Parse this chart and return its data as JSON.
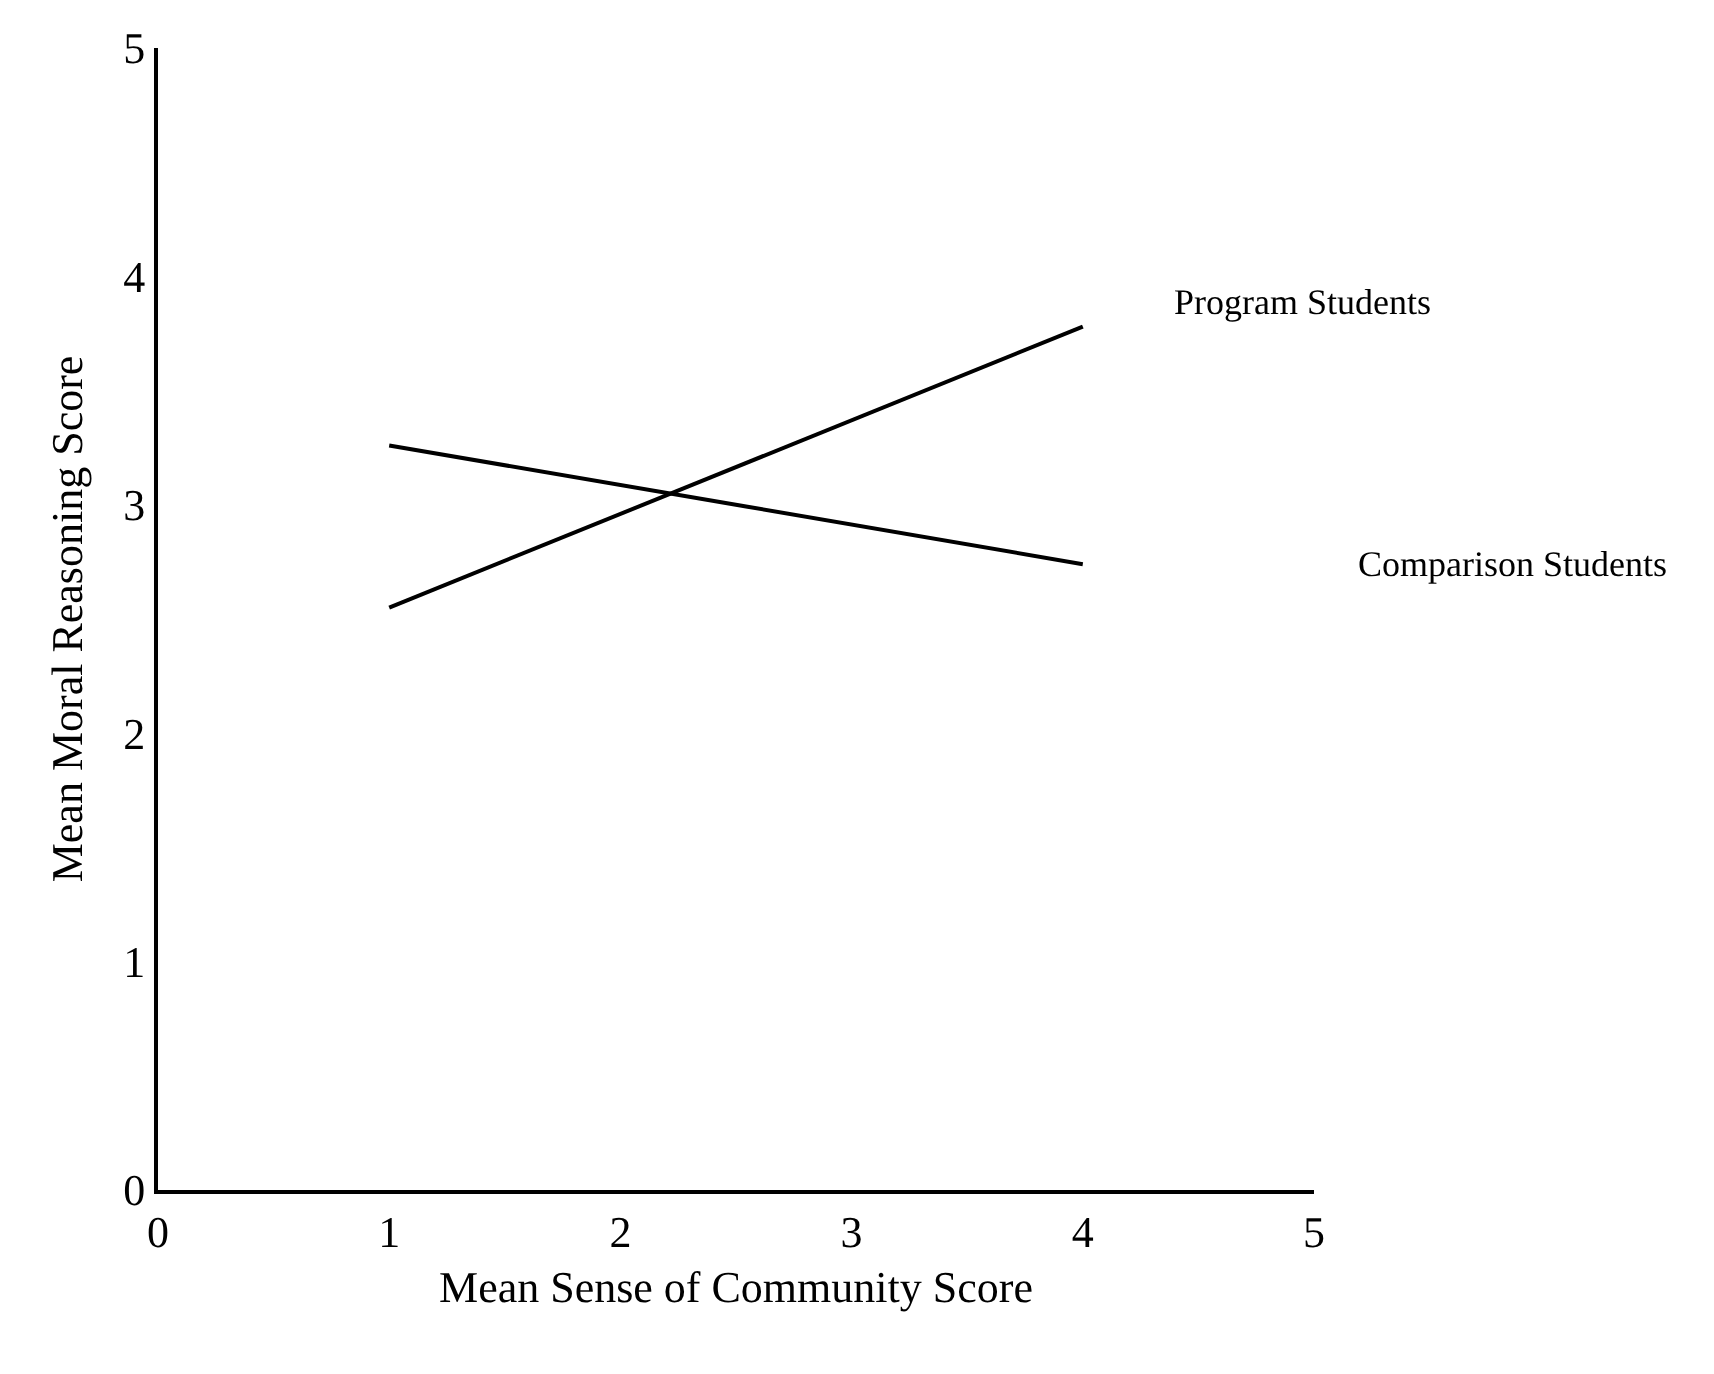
{
  "chart_data": {
    "type": "line",
    "xlabel": "Mean Sense of Community Score",
    "ylabel": "Mean Moral Reasoning Score",
    "x": [
      1,
      4
    ],
    "series": [
      {
        "name": "Program Students",
        "color": "#000000",
        "values": [
          2.55,
          3.78
        ]
      },
      {
        "name": "Comparison Students",
        "color": "#000000",
        "values": [
          3.26,
          2.74
        ]
      }
    ],
    "xlim": [
      0,
      5
    ],
    "xticks": [
      0,
      1,
      2,
      3,
      4,
      5
    ],
    "ylim": [
      0,
      5
    ],
    "yticks": [
      0,
      1,
      2,
      3,
      4,
      5
    ],
    "grid": false,
    "legend": false,
    "marker": "none",
    "line_style": "solid"
  }
}
